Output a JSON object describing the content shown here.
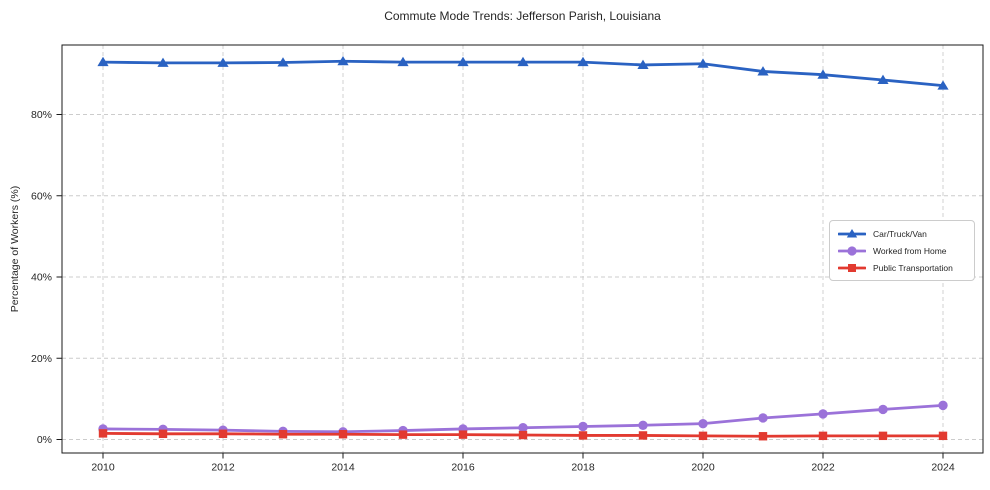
{
  "title": "Commute Mode Trends: Jefferson Parish, Louisiana",
  "chart_data": {
    "type": "line",
    "title": "Commute Mode Trends: Jefferson Parish, Louisiana",
    "xlabel": "",
    "ylabel": "Percentage of Workers (%)",
    "x": [
      2010,
      2011,
      2012,
      2013,
      2014,
      2015,
      2016,
      2017,
      2018,
      2019,
      2020,
      2021,
      2022,
      2023,
      2024
    ],
    "xticks": [
      2010,
      2012,
      2014,
      2016,
      2018,
      2020,
      2022,
      2024
    ],
    "xtick_labels": [
      "2010",
      "2012",
      "2014",
      "2016",
      "2018",
      "2020",
      "2022",
      "2024"
    ],
    "yticks": [
      0,
      20,
      40,
      60,
      80
    ],
    "ytick_labels": [
      "0%",
      "20%",
      "40%",
      "60%",
      "80%"
    ],
    "ylim": [
      -3.2,
      97.2
    ],
    "grid": true,
    "grid_color": "#cccccc",
    "axis_color": "#1a1a1a",
    "legend_position": "center right",
    "series": [
      {
        "name": "Car/Truck/Van",
        "marker": "triangle",
        "color": "#2a62c2",
        "values": [
          92.9,
          92.7,
          92.7,
          92.8,
          93.1,
          92.9,
          92.9,
          92.9,
          92.9,
          92.2,
          92.5,
          90.6,
          89.8,
          88.5,
          87.1
        ]
      },
      {
        "name": "Worked from Home",
        "marker": "circle",
        "color": "#9b72d9",
        "values": [
          2.6,
          2.5,
          2.3,
          2.0,
          1.9,
          2.2,
          2.6,
          2.9,
          3.2,
          3.5,
          3.9,
          5.3,
          6.3,
          7.4,
          8.4
        ]
      },
      {
        "name": "Public Transportation",
        "marker": "square",
        "color": "#e23a30",
        "values": [
          1.5,
          1.4,
          1.4,
          1.3,
          1.3,
          1.2,
          1.2,
          1.1,
          1.0,
          1.0,
          0.9,
          0.8,
          0.9,
          0.9,
          0.9
        ]
      }
    ]
  }
}
